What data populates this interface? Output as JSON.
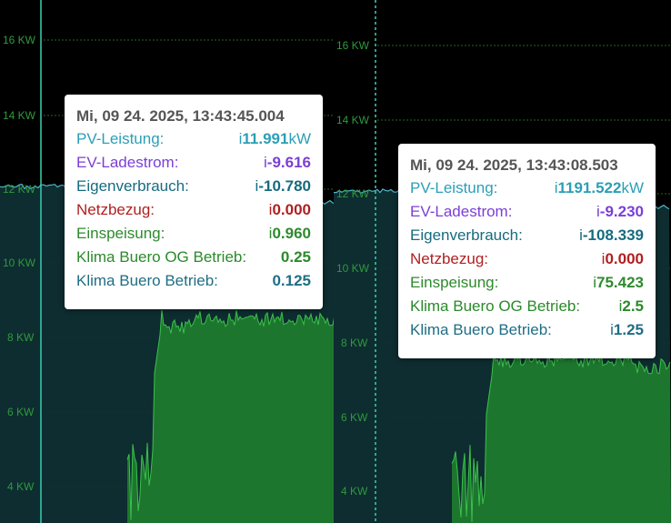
{
  "chart_data": [
    {
      "type": "area",
      "y_tick_labels": [
        "16 KW",
        "14 KW",
        "12 KW",
        "10 KW",
        "8 KW",
        "6 KW",
        "4 KW"
      ],
      "tooltip": {
        "title": "Mi, 09 24. 2025, 13:43:45.004",
        "rows": [
          {
            "label": "PV-Leistung:",
            "prefix": "i",
            "value": "11.991",
            "unit": "kW",
            "color": "#2b9fb6"
          },
          {
            "label": "EV-Ladestrom:",
            "prefix": "i",
            "value": "-9.616",
            "unit": "",
            "color": "#7b3fd6"
          },
          {
            "label": "Eigenverbrauch:",
            "prefix": "i",
            "value": "-10.780",
            "unit": "",
            "color": "#176b7f"
          },
          {
            "label": "Netzbezug:",
            "prefix": "i",
            "value": "0.000",
            "unit": "",
            "color": "#b02020"
          },
          {
            "label": "Einspeisung:",
            "prefix": "i",
            "value": "0.960",
            "unit": "",
            "color": "#2e8a2e"
          },
          {
            "label": "Klima Buero OG Betrieb:",
            "prefix": "",
            "value": "0.25",
            "unit": "",
            "color": "#2a8a2a"
          },
          {
            "label": "Klima Buero Betrieb:",
            "prefix": "",
            "value": "0.125",
            "unit": "",
            "color": "#1f6e85"
          }
        ]
      }
    },
    {
      "type": "area",
      "y_tick_labels": [
        "16 KW",
        "14 KW",
        "12 KW",
        "10 KW",
        "8 KW",
        "6 KW",
        "4 KW"
      ],
      "tooltip": {
        "title": "Mi, 09 24. 2025, 13:43:08.503",
        "rows": [
          {
            "label": "PV-Leistung:",
            "prefix": "i",
            "value": "1191.522",
            "unit": "kW",
            "color": "#2b9fb6"
          },
          {
            "label": "EV-Ladestrom:",
            "prefix": "i",
            "value": "-9.230",
            "unit": "",
            "color": "#7b3fd6"
          },
          {
            "label": "Eigenverbrauch:",
            "prefix": "i",
            "value": "-108.339",
            "unit": "",
            "color": "#176b7f"
          },
          {
            "label": "Netzbezug:",
            "prefix": "i",
            "value": "0.000",
            "unit": "",
            "color": "#b02020"
          },
          {
            "label": "Einspeisung:",
            "prefix": "i",
            "value": "75.423",
            "unit": "",
            "color": "#2e8a2e"
          },
          {
            "label": "Klima Buero OG Betrieb:",
            "prefix": "i",
            "value": "2.5",
            "unit": "",
            "color": "#2a8a2a"
          },
          {
            "label": "Klima Buero Betrieb:",
            "prefix": "i",
            "value": "1.25",
            "unit": "",
            "color": "#1f6e85"
          }
        ]
      }
    }
  ],
  "colors": {
    "background": "#000000",
    "grid": "#2e8b2e",
    "pv_line": "#4fb4c8",
    "pv_fill": "#0f2f33",
    "einspeisung_fill": "#1f7a2e",
    "einspeisung_line": "#3cc04c",
    "crosshair": "#3ccfb0"
  }
}
